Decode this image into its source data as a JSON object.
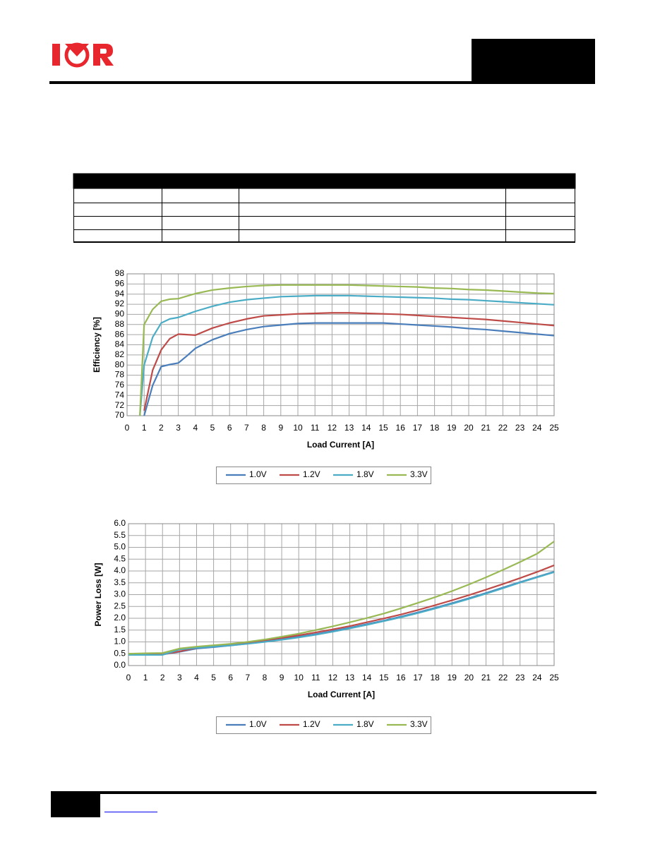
{
  "chart_data": [
    {
      "type": "line",
      "xlabel": "Load Current [A]",
      "ylabel": "Efficiency [%]",
      "x": [
        0.75,
        1,
        1.5,
        2,
        2.5,
        3,
        3.5,
        4,
        5,
        6,
        7,
        8,
        9,
        10,
        11,
        12,
        13,
        14,
        15,
        16,
        17,
        18,
        19,
        20,
        21,
        22,
        23,
        24,
        25
      ],
      "series": [
        {
          "name": "1.0V",
          "color": "#4a7ebb",
          "values": [
            null,
            70,
            76,
            79.7,
            80.1,
            80.4,
            81.8,
            83.3,
            85,
            86.2,
            87,
            87.6,
            87.9,
            88.2,
            88.3,
            88.3,
            88.3,
            88.3,
            88.3,
            88.1,
            87.9,
            87.7,
            87.5,
            87.2,
            87,
            86.7,
            86.4,
            86.1,
            85.8
          ]
        },
        {
          "name": "1.2V",
          "color": "#be4b48",
          "values": [
            null,
            71,
            79,
            83,
            85.2,
            86.1,
            86,
            85.9,
            87.3,
            88.3,
            89.1,
            89.7,
            89.9,
            90.1,
            90.2,
            90.3,
            90.3,
            90.2,
            90.1,
            90,
            89.8,
            89.6,
            89.4,
            89.2,
            89,
            88.7,
            88.4,
            88.1,
            87.8
          ]
        },
        {
          "name": "1.8V",
          "color": "#4bacc6",
          "values": [
            70,
            80,
            85.5,
            88.3,
            89.1,
            89.4,
            90,
            90.6,
            91.6,
            92.4,
            92.9,
            93.2,
            93.5,
            93.6,
            93.7,
            93.7,
            93.7,
            93.6,
            93.5,
            93.4,
            93.3,
            93.2,
            93,
            92.9,
            92.7,
            92.5,
            92.3,
            92.1,
            91.9
          ]
        },
        {
          "name": "3.3V",
          "color": "#98b954",
          "values": [
            70,
            88,
            91,
            92.6,
            93,
            93.1,
            93.6,
            94.1,
            94.8,
            95.2,
            95.5,
            95.7,
            95.8,
            95.8,
            95.8,
            95.8,
            95.8,
            95.7,
            95.6,
            95.5,
            95.4,
            95.2,
            95.1,
            94.9,
            94.8,
            94.6,
            94.4,
            94.2,
            94.1
          ]
        }
      ],
      "xlim": [
        0,
        25
      ],
      "xticks": [
        0,
        1,
        2,
        3,
        4,
        5,
        6,
        7,
        8,
        9,
        10,
        11,
        12,
        13,
        14,
        15,
        16,
        17,
        18,
        19,
        20,
        21,
        22,
        23,
        24,
        25
      ],
      "ylim": [
        70,
        98
      ],
      "yticks": [
        70,
        72,
        74,
        76,
        78,
        80,
        82,
        84,
        86,
        88,
        90,
        92,
        94,
        96,
        98
      ],
      "grid": true,
      "legend": "bottom"
    },
    {
      "type": "line",
      "xlabel": "Load Current [A]",
      "ylabel": "Power Loss [W]",
      "x": [
        0,
        1,
        2,
        3,
        4,
        5,
        6,
        7,
        8,
        9,
        10,
        11,
        12,
        13,
        14,
        15,
        16,
        17,
        18,
        19,
        20,
        21,
        22,
        23,
        24,
        25
      ],
      "series": [
        {
          "name": "1.0V",
          "color": "#4a7ebb",
          "values": [
            0.45,
            0.45,
            0.47,
            0.58,
            0.72,
            0.78,
            0.85,
            0.93,
            1.02,
            1.12,
            1.22,
            1.33,
            1.46,
            1.6,
            1.75,
            1.9,
            2.07,
            2.25,
            2.44,
            2.64,
            2.85,
            3.07,
            3.3,
            3.53,
            3.75,
            3.97
          ]
        },
        {
          "name": "1.2V",
          "color": "#be4b48",
          "values": [
            0.45,
            0.45,
            0.47,
            0.6,
            0.75,
            0.82,
            0.89,
            0.97,
            1.07,
            1.17,
            1.28,
            1.4,
            1.53,
            1.67,
            1.83,
            1.99,
            2.16,
            2.35,
            2.55,
            2.76,
            2.98,
            3.21,
            3.45,
            3.7,
            3.96,
            4.24
          ]
        },
        {
          "name": "1.8V",
          "color": "#4bacc6",
          "values": [
            0.45,
            0.45,
            0.45,
            0.68,
            0.75,
            0.8,
            0.85,
            0.92,
            1.0,
            1.09,
            1.19,
            1.3,
            1.43,
            1.57,
            1.72,
            1.88,
            2.04,
            2.22,
            2.41,
            2.61,
            2.82,
            3.04,
            3.27,
            3.51,
            3.73,
            3.95
          ]
        },
        {
          "name": "3.3V",
          "color": "#98b954",
          "values": [
            0.5,
            0.52,
            0.53,
            0.72,
            0.8,
            0.86,
            0.92,
            1.0,
            1.1,
            1.22,
            1.35,
            1.5,
            1.66,
            1.83,
            2.01,
            2.2,
            2.42,
            2.65,
            2.89,
            3.15,
            3.43,
            3.73,
            4.05,
            4.38,
            4.73,
            5.25
          ]
        }
      ],
      "xlim": [
        0,
        25
      ],
      "xticks": [
        0,
        1,
        2,
        3,
        4,
        5,
        6,
        7,
        8,
        9,
        10,
        11,
        12,
        13,
        14,
        15,
        16,
        17,
        18,
        19,
        20,
        21,
        22,
        23,
        24,
        25
      ],
      "ylim": [
        0,
        6
      ],
      "yticks": [
        {
          "value": 0,
          "label": "0.0"
        },
        0.5,
        {
          "value": 1,
          "label": "1.0"
        },
        1.5,
        {
          "value": 2,
          "label": "2.0"
        },
        2.5,
        {
          "value": 3,
          "label": "3.0"
        },
        3.5,
        {
          "value": 4,
          "label": "4.0"
        },
        4.5,
        {
          "value": 5,
          "label": "5.0"
        },
        5.5,
        {
          "value": 6,
          "label": "6.0"
        }
      ],
      "grid": true,
      "legend": "bottom"
    }
  ]
}
